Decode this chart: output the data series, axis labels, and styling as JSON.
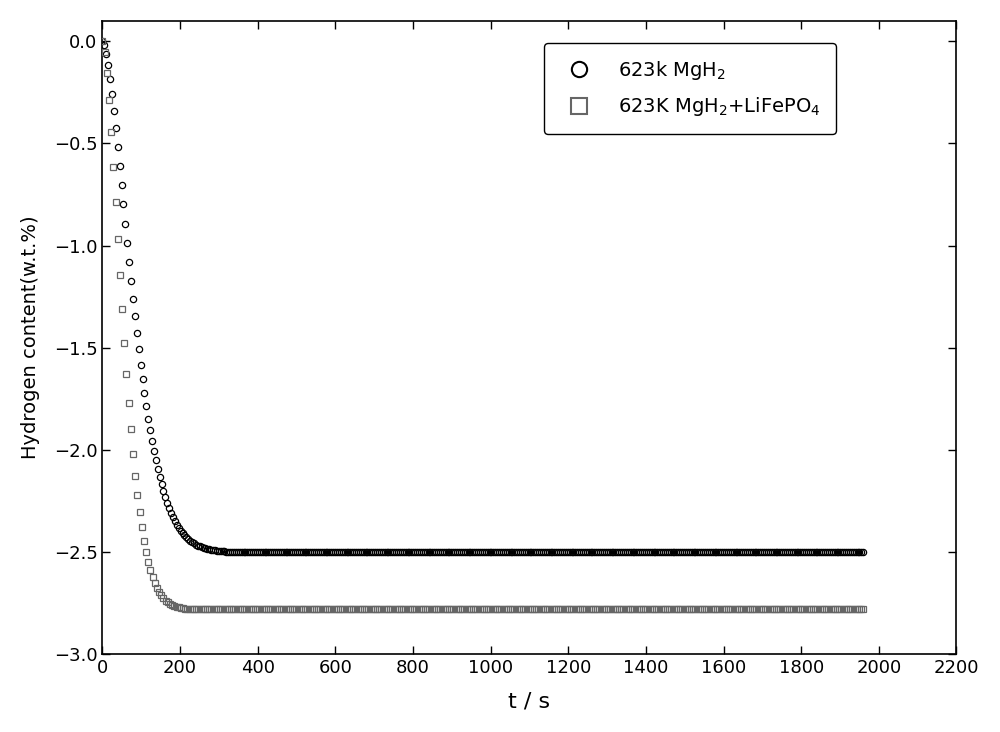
{
  "title": "",
  "xlabel": "t / s",
  "ylabel": "Hydrogen content(w.t.%)",
  "xlim": [
    0,
    2200
  ],
  "ylim": [
    -3.0,
    0.1
  ],
  "xticks": [
    0,
    200,
    400,
    600,
    800,
    1000,
    1200,
    1400,
    1600,
    1800,
    2000,
    2200
  ],
  "yticks": [
    0.0,
    -0.5,
    -1.0,
    -1.5,
    -2.0,
    -2.5,
    -3.0
  ],
  "legend1_label": "623k MgH$_2$",
  "legend2_label": "623K MgH$_2$+LiFePO$_4$",
  "circle_color": "#000000",
  "square_color": "#888888",
  "background_color": "#ffffff",
  "series1_plateau": -2.5,
  "series1_k": 0.00065,
  "series1_n": 1.6,
  "series1_end_time": 1960,
  "series2_plateau": -2.78,
  "series2_k": 0.0012,
  "series2_n": 1.6,
  "series2_end_time": 1960,
  "n_points1": 400,
  "n_points2": 350
}
